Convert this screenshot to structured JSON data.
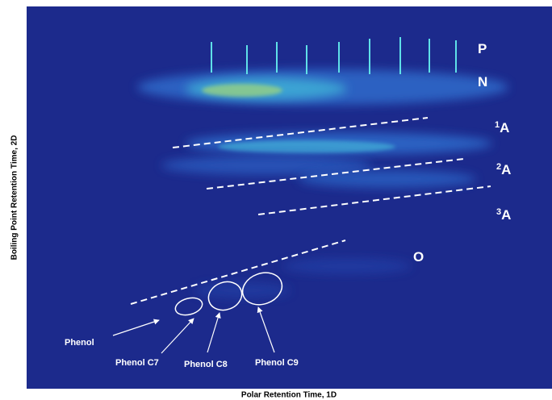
{
  "axes": {
    "x_label": "Polar Retention Time, 1D",
    "y_label": "Boiling Point Retention Time, 2D"
  },
  "regions": [
    {
      "text": "P"
    },
    {
      "text": "N"
    },
    {
      "sup": "1",
      "text": "A"
    },
    {
      "sup": "2",
      "text": "A"
    },
    {
      "sup": "3",
      "text": "A"
    },
    {
      "text": "O"
    }
  ],
  "annotations": [
    "Phenol",
    "Phenol C7",
    "Phenol C8",
    "Phenol C9"
  ]
}
